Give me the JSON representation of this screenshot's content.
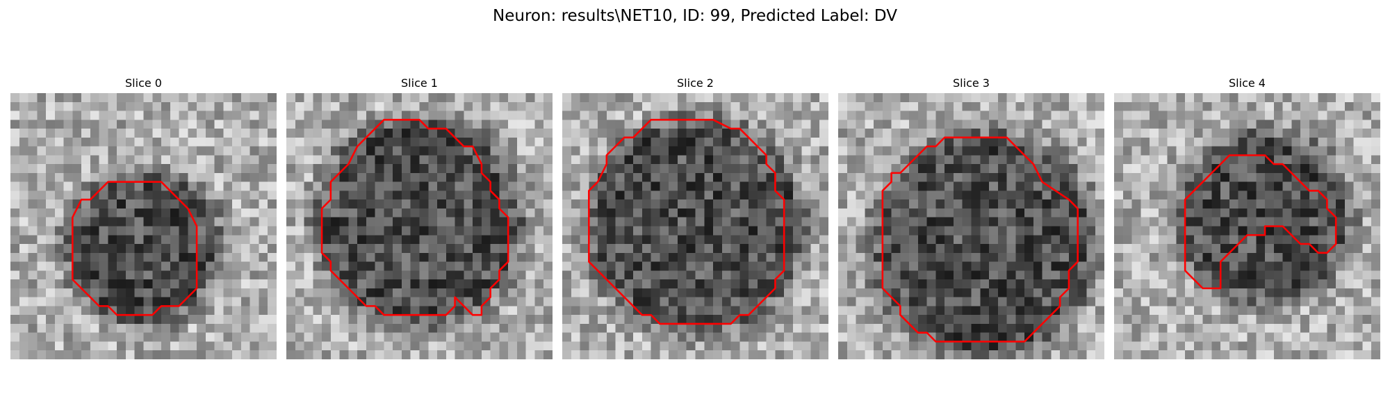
{
  "figure": {
    "title": "Neuron: results\\NET10, ID: 99, Predicted Label: DV"
  },
  "panels": [
    {
      "title": "Slice 0",
      "grid": 30,
      "contour": [
        [
          11,
          10
        ],
        [
          17,
          10
        ],
        [
          20,
          13
        ],
        [
          21,
          15
        ],
        [
          21,
          22
        ],
        [
          20,
          23
        ],
        [
          20,
          23
        ],
        [
          19,
          24
        ],
        [
          17,
          24
        ],
        [
          16,
          25
        ],
        [
          12,
          25
        ],
        [
          11,
          24
        ],
        [
          10,
          24
        ],
        [
          7,
          21
        ],
        [
          7,
          14
        ],
        [
          8,
          12
        ],
        [
          9,
          12
        ]
      ]
    },
    {
      "title": "Slice 1",
      "grid": 30,
      "contour": [
        [
          11,
          3
        ],
        [
          15,
          3
        ],
        [
          16,
          4
        ],
        [
          18,
          4
        ],
        [
          20,
          6
        ],
        [
          21,
          6
        ],
        [
          22,
          8
        ],
        [
          22,
          9
        ],
        [
          23,
          10
        ],
        [
          23,
          11
        ],
        [
          24,
          12
        ],
        [
          24,
          13
        ],
        [
          25,
          14
        ],
        [
          25,
          19
        ],
        [
          24,
          20
        ],
        [
          24,
          21
        ],
        [
          23,
          22
        ],
        [
          23,
          23
        ],
        [
          22,
          24
        ],
        [
          22,
          25
        ],
        [
          21,
          25
        ],
        [
          19,
          23
        ],
        [
          19,
          24
        ],
        [
          18,
          25
        ],
        [
          17,
          25
        ],
        [
          17,
          25
        ],
        [
          11,
          25
        ],
        [
          10,
          24
        ],
        [
          9,
          24
        ],
        [
          6,
          21
        ],
        [
          5,
          20
        ],
        [
          5,
          19
        ],
        [
          4,
          18
        ],
        [
          4,
          13
        ],
        [
          5,
          12
        ],
        [
          5,
          11
        ],
        [
          5,
          10
        ],
        [
          6,
          9
        ],
        [
          7,
          8
        ],
        [
          8,
          6
        ],
        [
          9,
          5
        ],
        [
          10,
          4
        ]
      ]
    },
    {
      "title": "Slice 2",
      "grid": 30,
      "contour": [
        [
          10,
          3
        ],
        [
          17,
          3
        ],
        [
          19,
          4
        ],
        [
          20,
          4
        ],
        [
          21,
          5
        ],
        [
          22,
          6
        ],
        [
          23,
          7
        ],
        [
          23,
          8
        ],
        [
          24,
          9
        ],
        [
          24,
          11
        ],
        [
          25,
          12
        ],
        [
          25,
          20
        ],
        [
          24,
          21
        ],
        [
          24,
          22
        ],
        [
          23,
          23
        ],
        [
          21,
          25
        ],
        [
          20,
          25
        ],
        [
          19,
          26
        ],
        [
          11,
          26
        ],
        [
          10,
          25
        ],
        [
          9,
          25
        ],
        [
          7,
          23
        ],
        [
          6,
          22
        ],
        [
          5,
          21
        ],
        [
          4,
          20
        ],
        [
          3,
          19
        ],
        [
          3,
          11
        ],
        [
          4,
          10
        ],
        [
          5,
          8
        ],
        [
          5,
          7
        ],
        [
          6,
          6
        ],
        [
          7,
          5
        ],
        [
          8,
          5
        ],
        [
          9,
          4
        ]
      ]
    },
    {
      "title": "Slice 3",
      "grid": 30,
      "contour": [
        [
          12,
          5
        ],
        [
          19,
          5
        ],
        [
          20,
          6
        ],
        [
          21,
          7
        ],
        [
          22,
          8
        ],
        [
          23,
          10
        ],
        [
          26,
          12
        ],
        [
          27,
          13
        ],
        [
          27,
          19
        ],
        [
          26,
          20
        ],
        [
          26,
          22
        ],
        [
          25,
          23
        ],
        [
          25,
          24
        ],
        [
          24,
          25
        ],
        [
          23,
          26
        ],
        [
          22,
          27
        ],
        [
          21,
          28
        ],
        [
          20,
          28
        ],
        [
          19,
          28
        ],
        [
          15,
          28
        ],
        [
          11,
          28
        ],
        [
          10,
          27
        ],
        [
          9,
          27
        ],
        [
          7,
          25
        ],
        [
          7,
          24
        ],
        [
          6,
          23
        ],
        [
          5,
          22
        ],
        [
          5,
          21
        ],
        [
          5,
          20
        ],
        [
          5,
          18
        ],
        [
          5,
          17
        ],
        [
          5,
          11
        ],
        [
          6,
          10
        ],
        [
          6,
          9
        ],
        [
          7,
          9
        ],
        [
          8,
          8
        ],
        [
          9,
          7
        ],
        [
          10,
          6
        ],
        [
          11,
          6
        ]
      ]
    },
    {
      "title": "Slice 4",
      "grid": 30,
      "contour": [
        [
          13,
          7
        ],
        [
          17,
          7
        ],
        [
          18,
          8
        ],
        [
          19,
          8
        ],
        [
          20,
          9
        ],
        [
          21,
          10
        ],
        [
          22,
          11
        ],
        [
          23,
          11
        ],
        [
          24,
          12
        ],
        [
          24,
          13
        ],
        [
          25,
          14
        ],
        [
          25,
          15
        ],
        [
          25,
          16
        ],
        [
          25,
          17
        ],
        [
          25,
          17
        ],
        [
          24,
          18
        ],
        [
          23,
          18
        ],
        [
          22,
          17
        ],
        [
          21,
          17
        ],
        [
          20,
          16
        ],
        [
          19,
          15
        ],
        [
          18,
          15
        ],
        [
          17,
          15
        ],
        [
          17,
          16
        ],
        [
          15,
          16
        ],
        [
          14,
          17
        ],
        [
          13,
          18
        ],
        [
          12,
          19
        ],
        [
          12,
          21
        ],
        [
          12,
          22
        ],
        [
          11,
          22
        ],
        [
          10,
          22
        ],
        [
          9,
          21
        ],
        [
          8,
          20
        ],
        [
          8,
          19
        ],
        [
          8,
          17
        ],
        [
          8,
          16
        ],
        [
          8,
          15
        ],
        [
          8,
          14
        ],
        [
          8,
          12
        ],
        [
          9,
          11
        ],
        [
          10,
          10
        ],
        [
          11,
          9
        ],
        [
          12,
          8
        ]
      ]
    }
  ],
  "colors": {
    "contour": "#ff0000",
    "background": "#ffffff"
  }
}
